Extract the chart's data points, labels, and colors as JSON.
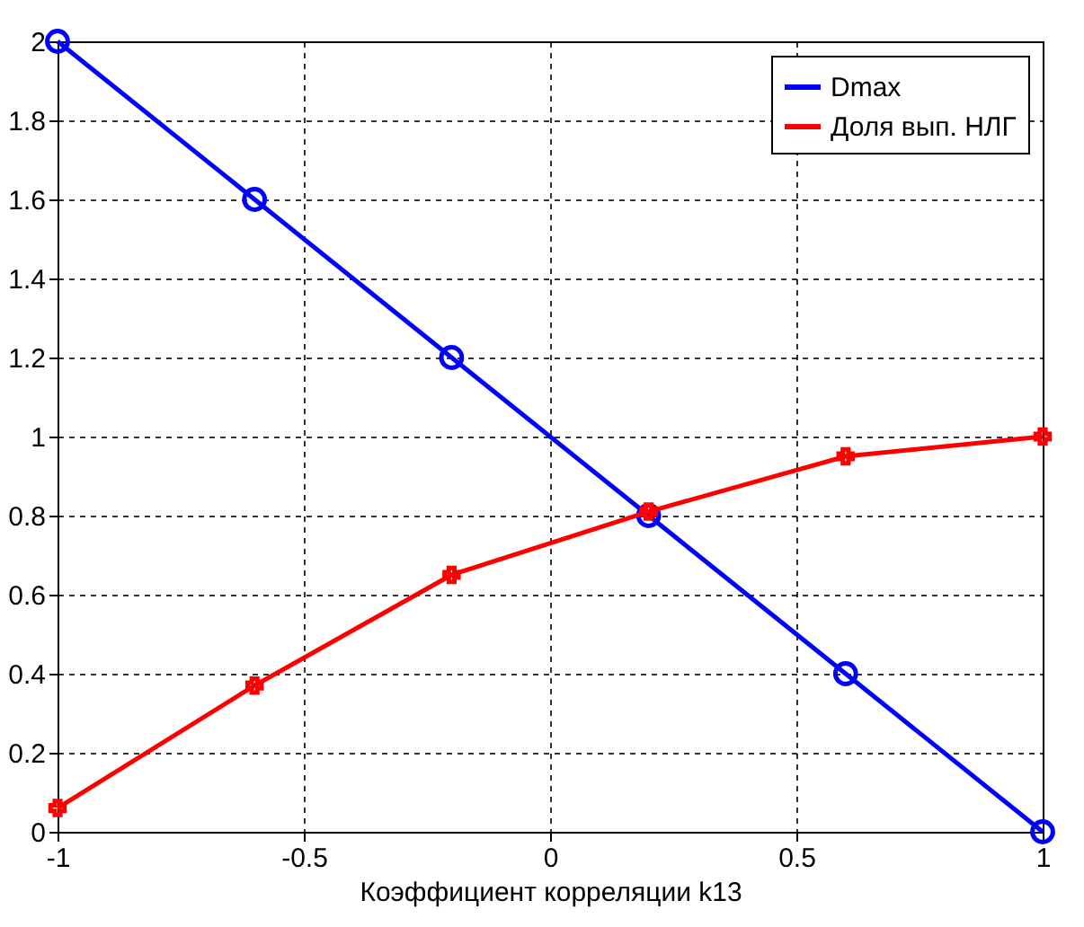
{
  "chart_data": {
    "type": "line",
    "xlabel": "Коэффициент корреляции k13",
    "x": [
      -1,
      -0.6,
      -0.2,
      0.2,
      0.6,
      1
    ],
    "series": [
      {
        "name": "Dmax",
        "color": "#0000ff",
        "marker": "circle",
        "values": [
          2,
          1.6,
          1.2,
          0.8,
          0.4,
          0
        ]
      },
      {
        "name": "Доля вып. НЛГ",
        "color": "#ff0000",
        "marker": "cross",
        "values": [
          0.06,
          0.37,
          0.65,
          0.81,
          0.95,
          1.0
        ]
      }
    ],
    "xlim": [
      -1,
      1
    ],
    "xticks": [
      -1,
      -0.5,
      0,
      0.5,
      1
    ],
    "ylim": [
      0,
      2
    ],
    "yticks": [
      0,
      0.2,
      0.4,
      0.6,
      0.8,
      1,
      1.2,
      1.4,
      1.6,
      1.8,
      2
    ],
    "grid": true,
    "legend": "top right",
    "line_style": "solid"
  }
}
